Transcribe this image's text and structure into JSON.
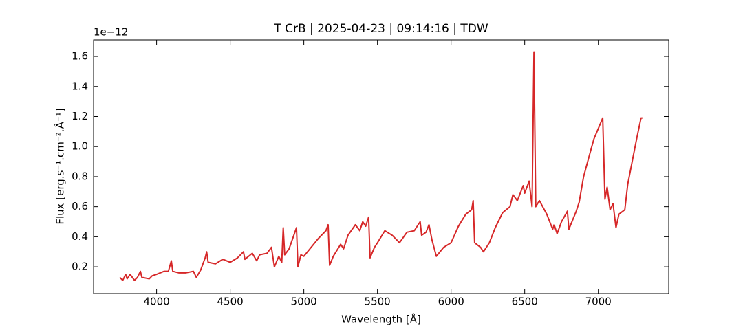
{
  "chart_data": {
    "type": "line",
    "title": "T CrB | 2025-04-23 | 09:14:16 | TDW",
    "x_label": "Wavelength [Å]",
    "y_label": "Flux [erg.s⁻¹.cm⁻².Å⁻¹]",
    "y_offset_label": "1e−12",
    "x": [
      3750,
      3770,
      3790,
      3800,
      3820,
      3850,
      3870,
      3890,
      3900,
      3950,
      3970,
      4000,
      4050,
      4080,
      4100,
      4110,
      4150,
      4200,
      4250,
      4270,
      4300,
      4330,
      4340,
      4350,
      4400,
      4450,
      4500,
      4550,
      4590,
      4600,
      4650,
      4680,
      4700,
      4750,
      4780,
      4800,
      4830,
      4850,
      4860,
      4870,
      4900,
      4950,
      4960,
      4980,
      5000,
      5050,
      5100,
      5150,
      5165,
      5175,
      5200,
      5250,
      5270,
      5300,
      5350,
      5380,
      5400,
      5420,
      5440,
      5450,
      5480,
      5500,
      5550,
      5600,
      5650,
      5700,
      5750,
      5790,
      5800,
      5830,
      5850,
      5870,
      5900,
      5950,
      6000,
      6050,
      6100,
      6140,
      6150,
      6160,
      6200,
      6220,
      6260,
      6300,
      6350,
      6400,
      6420,
      6450,
      6490,
      6500,
      6530,
      6550,
      6563,
      6575,
      6600,
      6650,
      6690,
      6700,
      6720,
      6750,
      6790,
      6800,
      6850,
      6870,
      6900,
      6950,
      6970,
      7030,
      7045,
      7060,
      7080,
      7100,
      7120,
      7140,
      7180,
      7200,
      7230,
      7260,
      7290,
      7300
    ],
    "series": [
      {
        "name": "Flux",
        "color": "#d62728",
        "values": [
          0.13,
          0.11,
          0.15,
          0.12,
          0.15,
          0.11,
          0.13,
          0.17,
          0.13,
          0.12,
          0.14,
          0.15,
          0.17,
          0.17,
          0.24,
          0.17,
          0.16,
          0.16,
          0.17,
          0.13,
          0.18,
          0.26,
          0.3,
          0.23,
          0.22,
          0.25,
          0.23,
          0.26,
          0.3,
          0.25,
          0.29,
          0.24,
          0.28,
          0.29,
          0.33,
          0.2,
          0.27,
          0.23,
          0.46,
          0.28,
          0.32,
          0.46,
          0.2,
          0.28,
          0.27,
          0.33,
          0.39,
          0.44,
          0.48,
          0.21,
          0.27,
          0.35,
          0.32,
          0.41,
          0.48,
          0.44,
          0.5,
          0.47,
          0.53,
          0.26,
          0.33,
          0.36,
          0.44,
          0.41,
          0.36,
          0.43,
          0.44,
          0.5,
          0.41,
          0.43,
          0.48,
          0.38,
          0.27,
          0.33,
          0.36,
          0.47,
          0.55,
          0.58,
          0.64,
          0.36,
          0.33,
          0.3,
          0.36,
          0.46,
          0.56,
          0.6,
          0.68,
          0.64,
          0.74,
          0.69,
          0.77,
          0.6,
          1.63,
          0.6,
          0.64,
          0.55,
          0.45,
          0.48,
          0.42,
          0.5,
          0.57,
          0.45,
          0.57,
          0.63,
          0.8,
          0.98,
          1.05,
          1.19,
          0.65,
          0.73,
          0.58,
          0.62,
          0.46,
          0.55,
          0.58,
          0.75,
          0.9,
          1.05,
          1.19,
          1.19
        ]
      }
    ],
    "xlim": [
      3572,
      7478
    ],
    "ylim": [
      0.022,
      1.71
    ],
    "xticks": [
      4000,
      4500,
      5000,
      5500,
      6000,
      6500,
      7000
    ],
    "yticks": [
      0.2,
      0.4,
      0.6,
      0.8,
      {
        "value": 1,
        "label": "1.0"
      },
      1.2,
      1.4,
      1.6
    ],
    "grid": false
  }
}
